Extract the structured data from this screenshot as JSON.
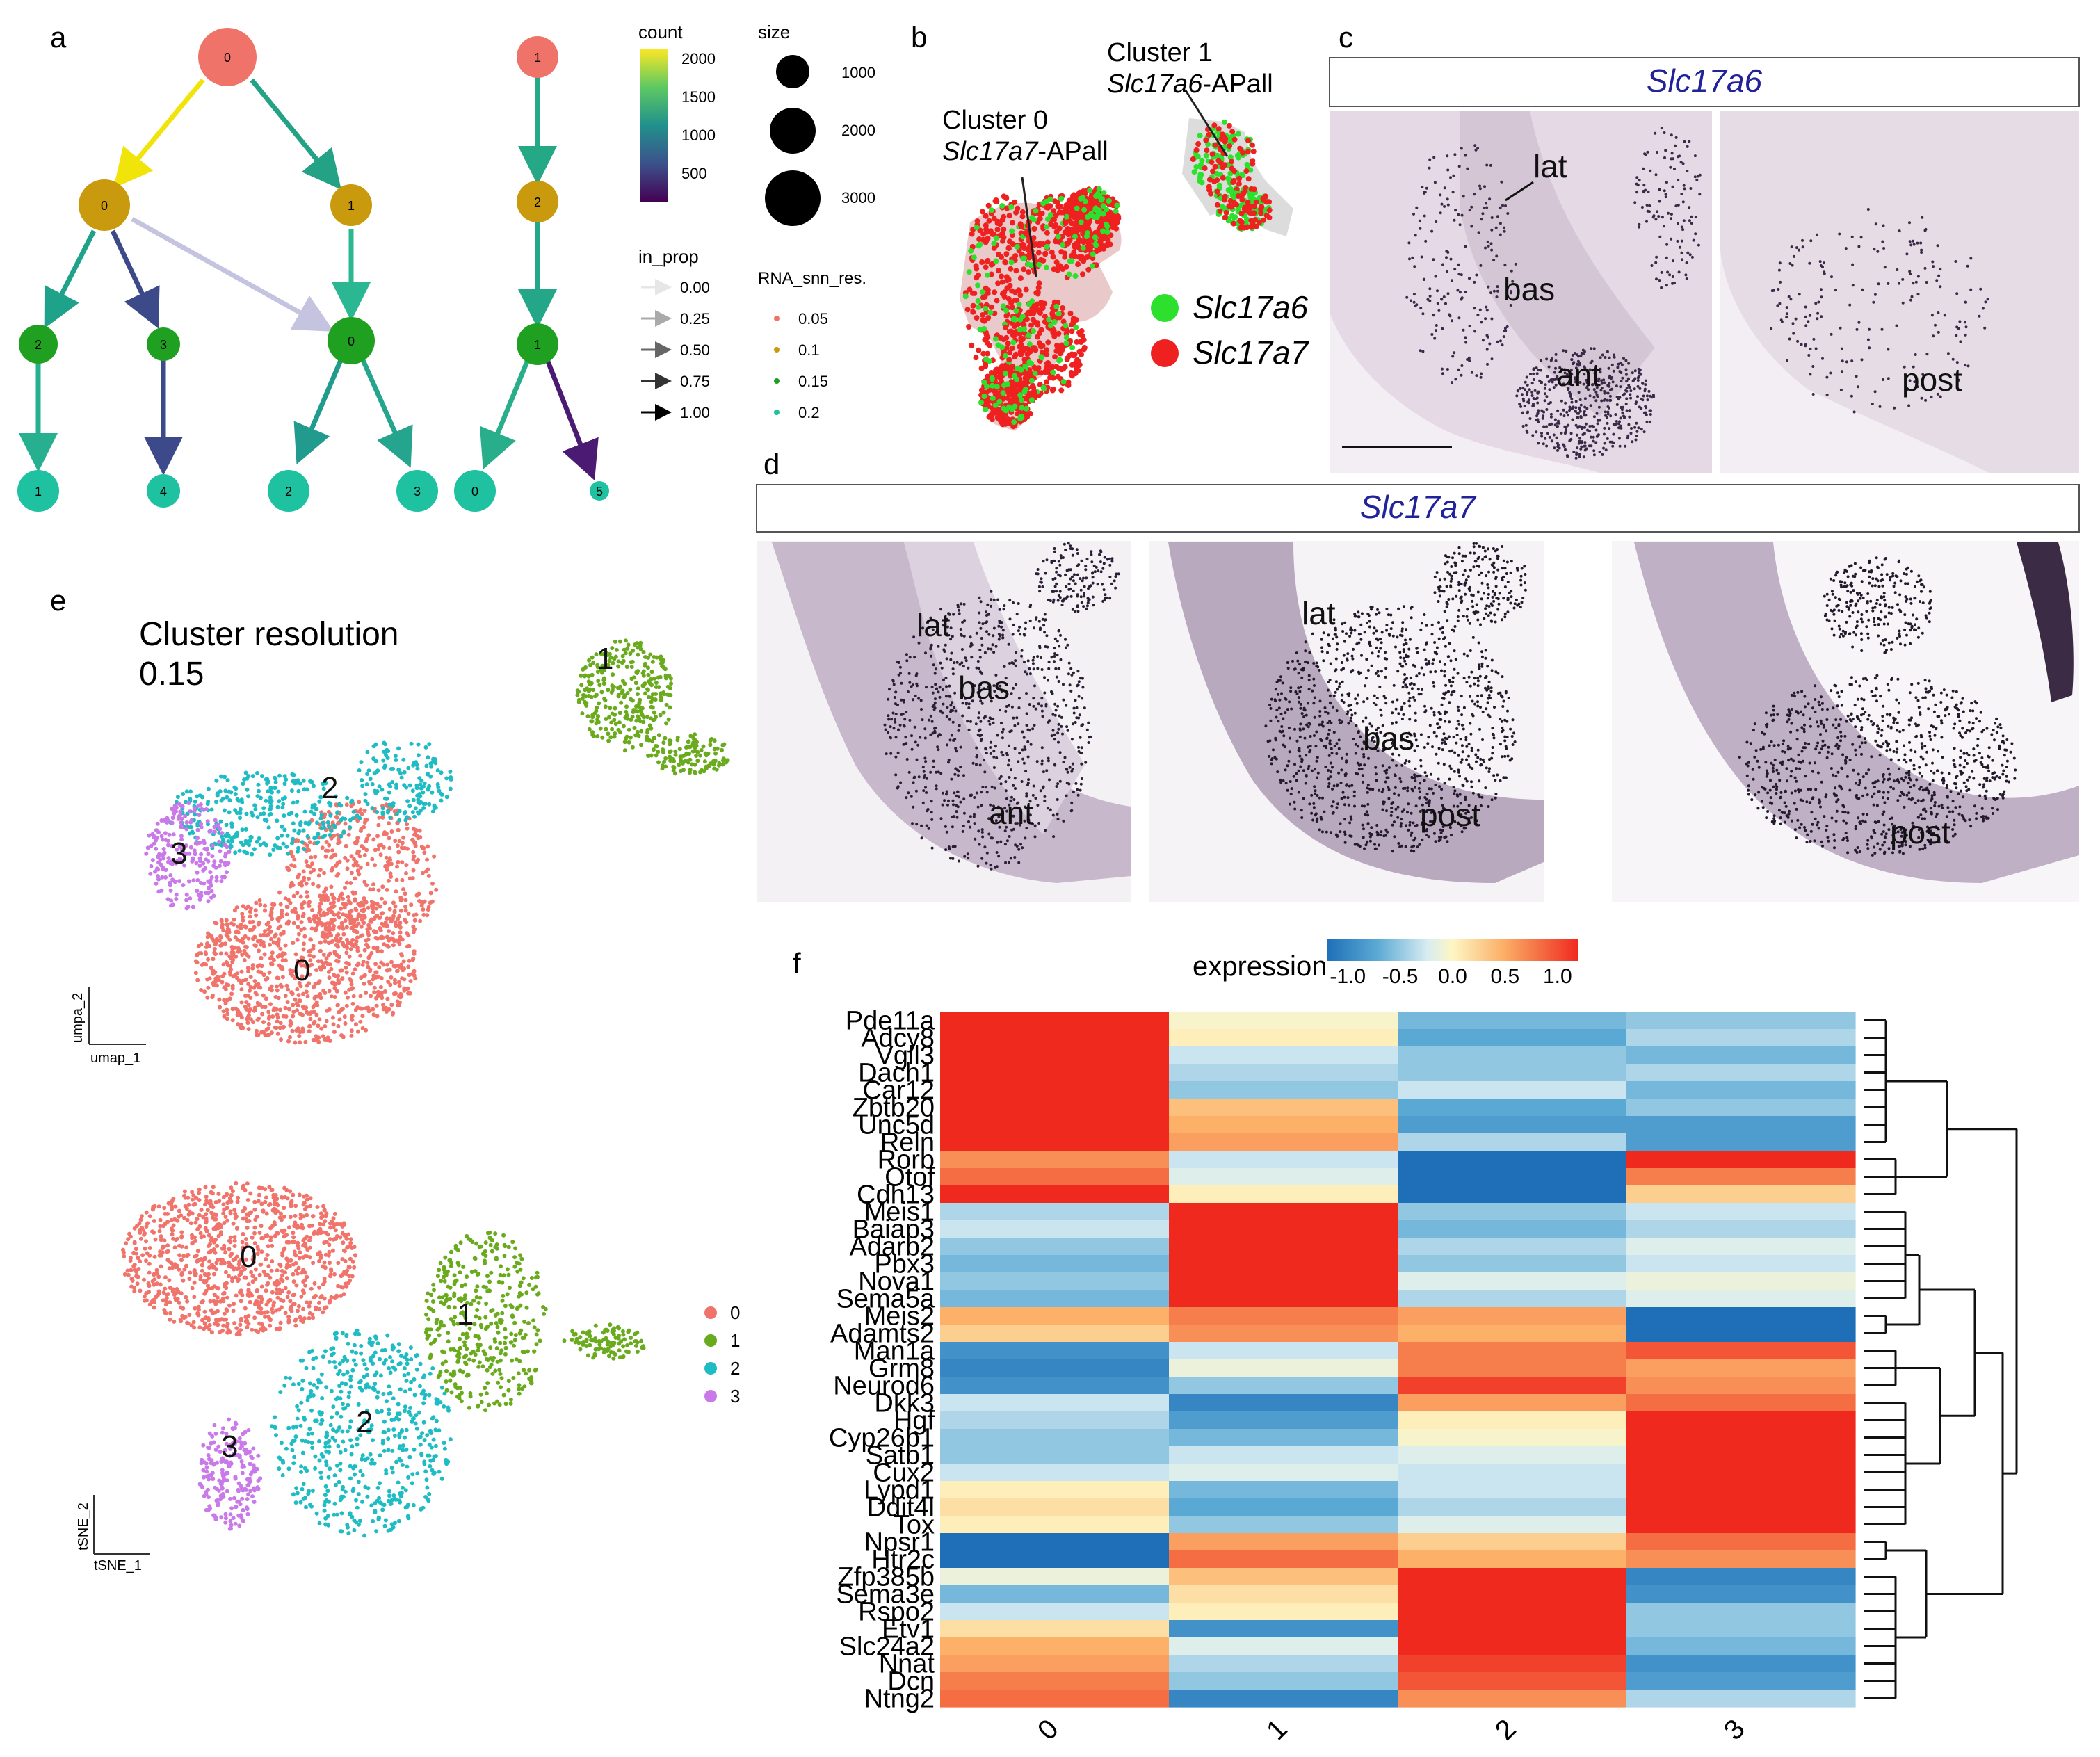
{
  "panel_labels": {
    "a": "a",
    "b": "b",
    "c": "c",
    "d": "d",
    "e": "e",
    "f": "f"
  },
  "panel_a": {
    "legend": {
      "count_title": "count",
      "count_ticks": [
        "2000",
        "1500",
        "1000",
        "500"
      ],
      "size_title": "size",
      "size_ticks": [
        "1000",
        "2000",
        "3000"
      ],
      "in_prop_title": "in_prop",
      "in_prop_ticks": [
        "0.00",
        "0.25",
        "0.50",
        "0.75",
        "1.00"
      ],
      "res_title": "RNA_snn_res.",
      "res_ticks": [
        "0.05",
        "0.1",
        "0.15",
        "0.2"
      ],
      "res_colors": [
        "#f0736a",
        "#c99a0d",
        "#20a020",
        "#1ec1a0"
      ]
    },
    "tree1_nodes": [
      "0",
      "0",
      "1",
      "2",
      "3",
      "0",
      "1",
      "4",
      "2",
      "3"
    ],
    "tree2_nodes": [
      "1",
      "2",
      "1",
      "0",
      "5"
    ]
  },
  "panel_b": {
    "cluster0_line1": "Cluster 0",
    "cluster0_gene": "Slc17a7",
    "cluster0_suffix": "-APall",
    "cluster1_line1": "Cluster 1",
    "cluster1_gene": "Slc17a6",
    "cluster1_suffix": "-APall",
    "legend": [
      {
        "label": "Slc17a6",
        "color": "#2ee02e"
      },
      {
        "label": "Slc17a7",
        "color": "#ee2020"
      }
    ]
  },
  "panel_c": {
    "gene": "Slc17a6",
    "left_labels": [
      "lat",
      "bas",
      "ant"
    ],
    "right_labels": [
      "post"
    ]
  },
  "panel_d": {
    "gene": "Slc17a7",
    "img1_labels": [
      "lat",
      "bas",
      "ant"
    ],
    "img2_labels": [
      "lat",
      "bas",
      "post"
    ],
    "img3_labels": [
      "post"
    ]
  },
  "panel_e": {
    "title_line1": "Cluster resolution",
    "title_line2": "0.15",
    "umap_xlabel": "umap_1",
    "umap_ylabel": "umpa_2",
    "tsne_xlabel": "tSNE_1",
    "tsne_ylabel": "tSNE_2",
    "cluster_labels": [
      "0",
      "1",
      "2",
      "3"
    ],
    "legend": [
      {
        "label": "0",
        "color": "#f0746b"
      },
      {
        "label": "1",
        "color": "#6aab1e"
      },
      {
        "label": "2",
        "color": "#20bcc4"
      },
      {
        "label": "3",
        "color": "#c97ae8"
      }
    ]
  },
  "chart_data": {
    "type": "heatmap",
    "title": "expression",
    "legend_ticks": [
      "-1.0",
      "-0.5",
      "0.0",
      "0.5",
      "1.0"
    ],
    "colorscale_range": [
      -1.2,
      1.2
    ],
    "columns": [
      "0",
      "1",
      "2",
      "3"
    ],
    "rows": [
      "Pde11a",
      "Adcy8",
      "Vgll3",
      "Dach1",
      "Car12",
      "Zbtb20",
      "Unc5d",
      "Reln",
      "Rorb",
      "Otof",
      "Cdh13",
      "Meis1",
      "Baiap3",
      "Adarb2",
      "Pbx3",
      "Nova1",
      "Sema5a",
      "Meis2",
      "Adamts2",
      "Man1a",
      "Grm8",
      "Neurod6",
      "Dkk3",
      "Hgf",
      "Cyp26b1",
      "Satb1",
      "Cux2",
      "Lypd1",
      "Ddit4l",
      "Tox",
      "Npsr1",
      "Htr2c",
      "Zfp385b",
      "Sema3e",
      "Rspo2",
      "Etv1",
      "Slc24a2",
      "Nnat",
      "Dcn",
      "Ntng2"
    ],
    "values": [
      [
        1.5,
        0.0,
        -0.6,
        -0.5
      ],
      [
        1.5,
        0.1,
        -0.7,
        -0.4
      ],
      [
        1.5,
        -0.3,
        -0.5,
        -0.6
      ],
      [
        1.5,
        -0.4,
        -0.5,
        -0.4
      ],
      [
        1.5,
        -0.5,
        -0.3,
        -0.6
      ],
      [
        1.5,
        0.4,
        -0.7,
        -0.5
      ],
      [
        1.2,
        0.5,
        -0.8,
        -0.8
      ],
      [
        1.4,
        0.6,
        -0.4,
        -0.8
      ],
      [
        0.7,
        -0.3,
        -1.2,
        1.3
      ],
      [
        0.9,
        -0.2,
        -1.2,
        0.8
      ],
      [
        1.3,
        0.1,
        -1.2,
        0.3
      ],
      [
        -0.4,
        1.5,
        -0.5,
        -0.3
      ],
      [
        -0.3,
        1.5,
        -0.6,
        -0.4
      ],
      [
        -0.5,
        1.5,
        -0.4,
        -0.2
      ],
      [
        -0.6,
        1.5,
        -0.5,
        -0.3
      ],
      [
        -0.5,
        1.5,
        -0.2,
        -0.1
      ],
      [
        -0.6,
        1.5,
        -0.4,
        -0.2
      ],
      [
        0.5,
        0.8,
        0.6,
        -1.2
      ],
      [
        0.3,
        0.7,
        0.5,
        -1.2
      ],
      [
        -0.9,
        -0.3,
        0.8,
        1.0
      ],
      [
        -1.0,
        -0.1,
        0.8,
        0.6
      ],
      [
        -0.9,
        -0.5,
        1.1,
        0.7
      ],
      [
        -0.3,
        -1.0,
        0.6,
        0.9
      ],
      [
        -0.4,
        -0.8,
        0.1,
        1.5
      ],
      [
        -0.5,
        -0.6,
        0.0,
        1.5
      ],
      [
        -0.5,
        -0.3,
        -0.2,
        1.5
      ],
      [
        -0.3,
        -0.2,
        -0.3,
        1.5
      ],
      [
        0.1,
        -0.6,
        -0.3,
        1.5
      ],
      [
        0.2,
        -0.7,
        -0.4,
        1.5
      ],
      [
        0.1,
        -0.5,
        -0.2,
        1.5
      ],
      [
        -1.2,
        0.6,
        0.3,
        0.9
      ],
      [
        -1.2,
        0.9,
        0.5,
        0.7
      ],
      [
        -0.1,
        0.4,
        1.5,
        -1.0
      ],
      [
        -0.6,
        0.2,
        1.5,
        -0.9
      ],
      [
        -0.3,
        0.1,
        1.5,
        -0.5
      ],
      [
        0.2,
        -0.9,
        1.5,
        -0.5
      ],
      [
        0.5,
        -0.2,
        1.4,
        -0.6
      ],
      [
        0.6,
        -0.4,
        1.1,
        -0.9
      ],
      [
        0.8,
        -0.5,
        1.0,
        -0.8
      ],
      [
        0.9,
        -1.0,
        0.7,
        -0.4
      ]
    ]
  }
}
